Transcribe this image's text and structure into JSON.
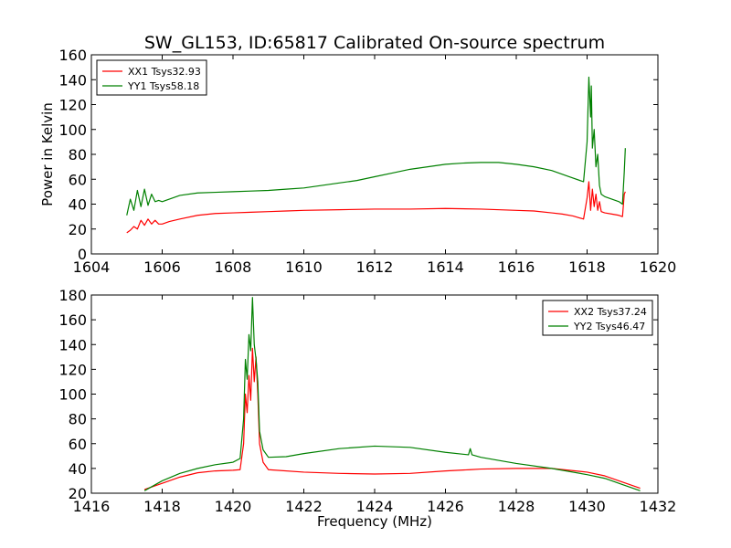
{
  "figure_title": "SW_GL153, ID:65817 Calibrated On-source spectrum",
  "colors": {
    "xx": "#ff0000",
    "yy": "#008000"
  },
  "chart_data": [
    {
      "type": "line",
      "title": "SW_GL153, ID:65817 Calibrated On-source spectrum",
      "xlabel": "",
      "ylabel": "Power in Kelvin",
      "xlim": [
        1604,
        1620
      ],
      "ylim": [
        0,
        160
      ],
      "xticks": [
        1604,
        1606,
        1608,
        1610,
        1612,
        1614,
        1616,
        1618,
        1620
      ],
      "yticks": [
        0,
        20,
        40,
        60,
        80,
        100,
        120,
        140,
        160
      ],
      "grid": false,
      "legend_position": "top-left",
      "series": [
        {
          "name": "XX1 Tsys32.93",
          "color": "#ff0000",
          "x": [
            1605.0,
            1605.1,
            1605.2,
            1605.3,
            1605.4,
            1605.5,
            1605.6,
            1605.7,
            1605.8,
            1605.9,
            1606.0,
            1606.2,
            1606.5,
            1607.0,
            1607.5,
            1608.0,
            1608.5,
            1609.0,
            1609.5,
            1610.0,
            1611.0,
            1612.0,
            1613.0,
            1614.0,
            1615.0,
            1616.0,
            1616.5,
            1617.0,
            1617.3,
            1617.6,
            1617.9,
            1618.0,
            1618.05,
            1618.1,
            1618.15,
            1618.2,
            1618.25,
            1618.3,
            1618.35,
            1618.4,
            1618.5,
            1618.7,
            1618.9,
            1619.0,
            1619.05,
            1619.08
          ],
          "y": [
            17,
            19,
            22,
            20,
            27,
            23,
            28,
            24,
            27,
            24,
            24,
            26,
            28,
            31,
            32.5,
            33,
            33.5,
            34,
            34.5,
            35,
            35.5,
            36,
            36,
            36.5,
            36,
            35,
            34.5,
            33,
            32,
            30.5,
            28,
            45,
            58,
            35,
            52,
            38,
            48,
            35,
            42,
            34,
            33,
            32,
            31,
            30,
            48,
            50
          ]
        },
        {
          "name": "YY1 Tsys58.18",
          "color": "#008000",
          "x": [
            1605.0,
            1605.1,
            1605.2,
            1605.3,
            1605.4,
            1605.5,
            1605.6,
            1605.7,
            1605.8,
            1605.9,
            1606.0,
            1606.2,
            1606.5,
            1607.0,
            1607.5,
            1608.0,
            1608.5,
            1609.0,
            1609.5,
            1610.0,
            1610.5,
            1611.0,
            1611.5,
            1612.0,
            1612.5,
            1613.0,
            1613.5,
            1614.0,
            1614.5,
            1615.0,
            1615.5,
            1616.0,
            1616.5,
            1617.0,
            1617.5,
            1617.9,
            1618.0,
            1618.05,
            1618.1,
            1618.12,
            1618.15,
            1618.2,
            1618.25,
            1618.3,
            1618.35,
            1618.4,
            1618.5,
            1618.7,
            1618.9,
            1619.0,
            1619.05,
            1619.08
          ],
          "y": [
            31,
            44,
            35,
            51,
            38,
            52,
            39,
            48,
            42,
            43,
            42,
            44,
            47,
            49,
            49.5,
            50,
            50.5,
            51,
            52,
            53,
            55,
            57,
            59,
            62,
            65,
            68,
            70,
            72,
            73,
            73.5,
            73.5,
            72,
            70,
            67,
            62,
            58,
            90,
            142,
            110,
            135,
            85,
            100,
            70,
            80,
            55,
            48,
            46,
            44,
            42,
            40,
            66,
            85
          ]
        }
      ]
    },
    {
      "type": "line",
      "title": "",
      "xlabel": "Frequency (MHz)",
      "ylabel": "",
      "xlim": [
        1416,
        1432
      ],
      "ylim": [
        20,
        180
      ],
      "xticks": [
        1416,
        1418,
        1420,
        1422,
        1424,
        1426,
        1428,
        1430,
        1432
      ],
      "yticks": [
        20,
        40,
        60,
        80,
        100,
        120,
        140,
        160,
        180
      ],
      "grid": false,
      "legend_position": "top-right",
      "series": [
        {
          "name": "XX2 Tsys37.24",
          "color": "#ff0000",
          "x": [
            1417.5,
            1418.0,
            1418.5,
            1419.0,
            1419.5,
            1420.0,
            1420.2,
            1420.3,
            1420.35,
            1420.4,
            1420.45,
            1420.5,
            1420.55,
            1420.6,
            1420.65,
            1420.7,
            1420.75,
            1420.85,
            1421.0,
            1422.0,
            1423.0,
            1424.0,
            1425.0,
            1426.0,
            1426.7,
            1427.0,
            1428.0,
            1429.0,
            1430.0,
            1430.5,
            1431.0,
            1431.5
          ],
          "y": [
            23,
            28,
            33,
            36.5,
            38,
            38.5,
            39,
            60,
            100,
            85,
            115,
            95,
            137,
            110,
            130,
            100,
            60,
            45,
            39,
            37,
            36,
            35.5,
            36,
            38,
            39,
            39.5,
            40,
            40,
            37,
            34,
            29,
            24
          ]
        },
        {
          "name": "YY2 Tsys46.47",
          "color": "#008000",
          "x": [
            1417.5,
            1418.0,
            1418.5,
            1419.0,
            1419.5,
            1420.0,
            1420.2,
            1420.3,
            1420.35,
            1420.4,
            1420.45,
            1420.5,
            1420.55,
            1420.6,
            1420.65,
            1420.7,
            1420.75,
            1420.85,
            1421.0,
            1421.5,
            1422.0,
            1423.0,
            1424.0,
            1425.0,
            1426.0,
            1426.65,
            1426.7,
            1426.75,
            1427.0,
            1428.0,
            1429.0,
            1430.0,
            1430.5,
            1431.0,
            1431.5
          ],
          "y": [
            22,
            30,
            36,
            40,
            43,
            45,
            48,
            80,
            128,
            112,
            148,
            135,
            178,
            140,
            128,
            110,
            70,
            55,
            49,
            49.5,
            52,
            56,
            58,
            57,
            53,
            51,
            56,
            51,
            49,
            44,
            40,
            35,
            32,
            27,
            22
          ]
        }
      ]
    }
  ]
}
